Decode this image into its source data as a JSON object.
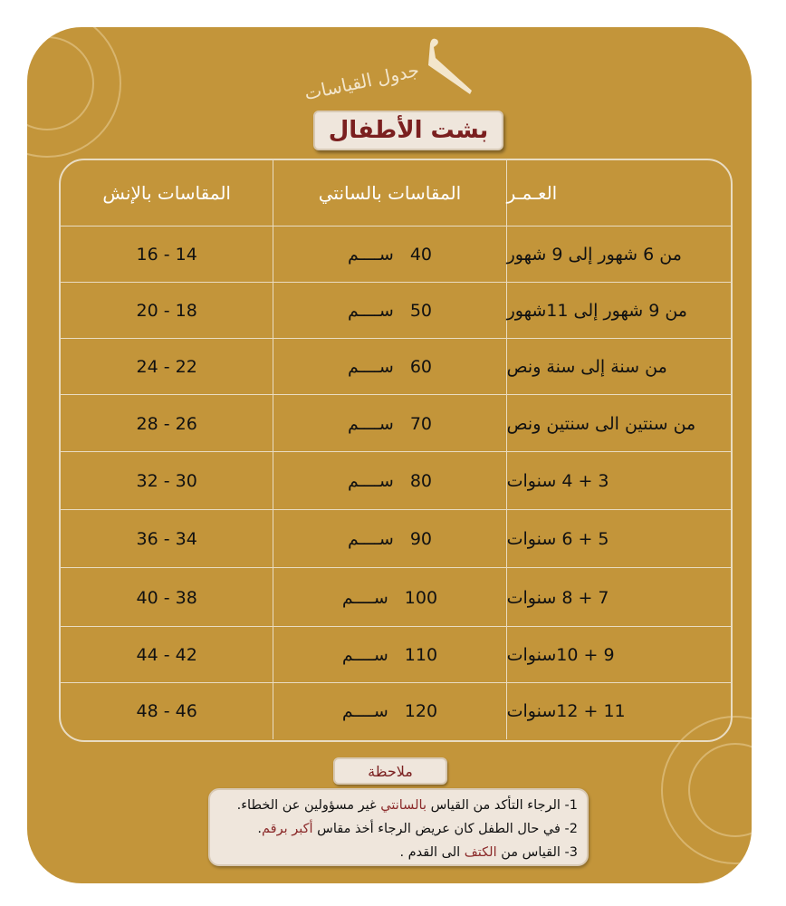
{
  "brand": "جدول القياسات",
  "title": "بشت الأطفال",
  "table": {
    "headers": {
      "inches": "المقاسات بالإنش",
      "cm": "المقاسات بالسانتي",
      "age": "العـمـر"
    },
    "cm_unit": "ســــم",
    "rows": [
      {
        "age": "من 6 شهور إلى 9 شهور",
        "cm": "40",
        "inches": "16 - 14"
      },
      {
        "age": "من 9 شهور إلى 11شهور",
        "cm": "50",
        "inches": "20 - 18"
      },
      {
        "age": "من سنة إلى سنة ونص",
        "cm": "60",
        "inches": "24 - 22"
      },
      {
        "age": "من سنتين الى سنتين ونص",
        "cm": "70",
        "inches": "28 - 26"
      },
      {
        "age": "3 + 4 سنوات",
        "cm": "80",
        "inches": "32 - 30"
      },
      {
        "age": "5 + 6 سنوات",
        "cm": "90",
        "inches": "36 - 34"
      },
      {
        "age": "7 + 8 سنوات",
        "cm": "100",
        "inches": "40 - 38"
      },
      {
        "age": "9 + 10سنوات",
        "cm": "110",
        "inches": "44 - 42"
      },
      {
        "age": "11 + 12سنوات",
        "cm": "120",
        "inches": "48 - 46"
      }
    ]
  },
  "notes": {
    "label": "ملاحظة",
    "items": [
      {
        "pre": "1- الرجاء التأكد من القياس ",
        "hl": "بالسانتي",
        "post": " غير مسؤولين عن الخطاء."
      },
      {
        "pre": "2- في حال الطفل كان عريض الرجاء أخذ مقاس ",
        "hl": "أكبر برقم",
        "post": "."
      },
      {
        "pre": "3- القياس من ",
        "hl": "الكتف",
        "post": " الى القدم ."
      }
    ]
  },
  "colors": {
    "background": "#C3953A",
    "accent": "#7a1f1f",
    "panel": "#efe6dc"
  }
}
